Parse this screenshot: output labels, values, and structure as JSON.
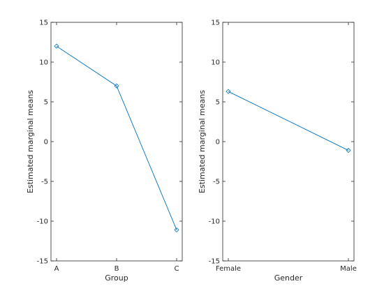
{
  "colors": {
    "line": "#0072BD",
    "axis": "#262626",
    "background": "#ffffff"
  },
  "chart_data": [
    {
      "type": "line",
      "categories": [
        "A",
        "B",
        "C"
      ],
      "series": [
        {
          "values": [
            12.0,
            7.0,
            -11.1
          ]
        }
      ],
      "xlabel": "Group",
      "ylabel": "Estimated marginal means",
      "ylim": [
        -15,
        15
      ],
      "yticks": [
        "-15",
        "-10",
        "-5",
        "0",
        "5",
        "10",
        "15"
      ],
      "yticks_values": [
        -15,
        -10,
        -5,
        0,
        5,
        10,
        15
      ],
      "grid": false,
      "marker": "diamond"
    },
    {
      "type": "line",
      "categories": [
        "Female",
        "Male"
      ],
      "series": [
        {
          "values": [
            6.3,
            -1.1
          ]
        }
      ],
      "xlabel": "Gender",
      "ylabel": "Estimated marginal means",
      "ylim": [
        -15,
        15
      ],
      "yticks": [
        "-15",
        "-10",
        "-5",
        "0",
        "5",
        "10",
        "15"
      ],
      "yticks_values": [
        -15,
        -10,
        -5,
        0,
        5,
        10,
        15
      ],
      "grid": false,
      "marker": "diamond"
    }
  ]
}
